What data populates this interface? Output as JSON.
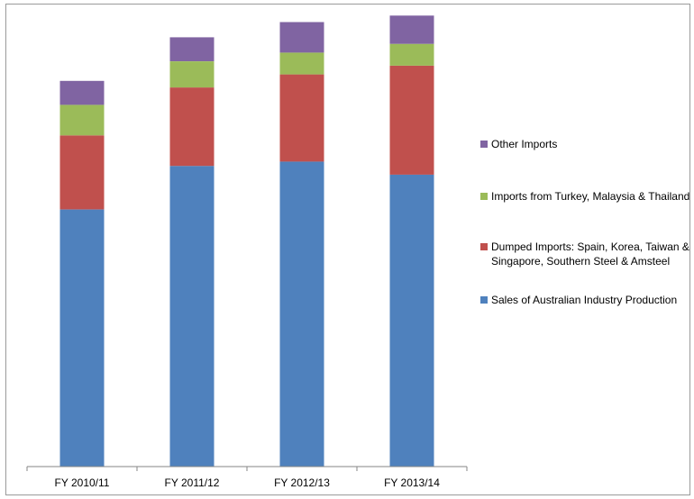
{
  "chart_data": {
    "type": "bar",
    "stacked": true,
    "categories": [
      "FY 2010/11",
      "FY 2011/12",
      "FY 2012/13",
      "FY 2013/14"
    ],
    "series": [
      {
        "name": "Sales of Australian Industry Production",
        "color": "#4f81bd",
        "values": [
          59,
          69,
          70,
          67
        ]
      },
      {
        "name": "Dumped Imports: Spain, Korea, Taiwan &\nSingapore, Southern Steel & Amsteel",
        "color": "#c0504d",
        "values": [
          17,
          18,
          20,
          25
        ]
      },
      {
        "name": "Imports from Turkey, Malaysia & Thailand",
        "color": "#9bbb59",
        "values": [
          7,
          6,
          5,
          5
        ]
      },
      {
        "name": "Other Imports",
        "color": "#8064a2",
        "values": [
          5.5,
          5.5,
          7,
          6.5
        ]
      }
    ],
    "legend": "right",
    "grid": false,
    "ylim": [
      0,
      105
    ]
  }
}
